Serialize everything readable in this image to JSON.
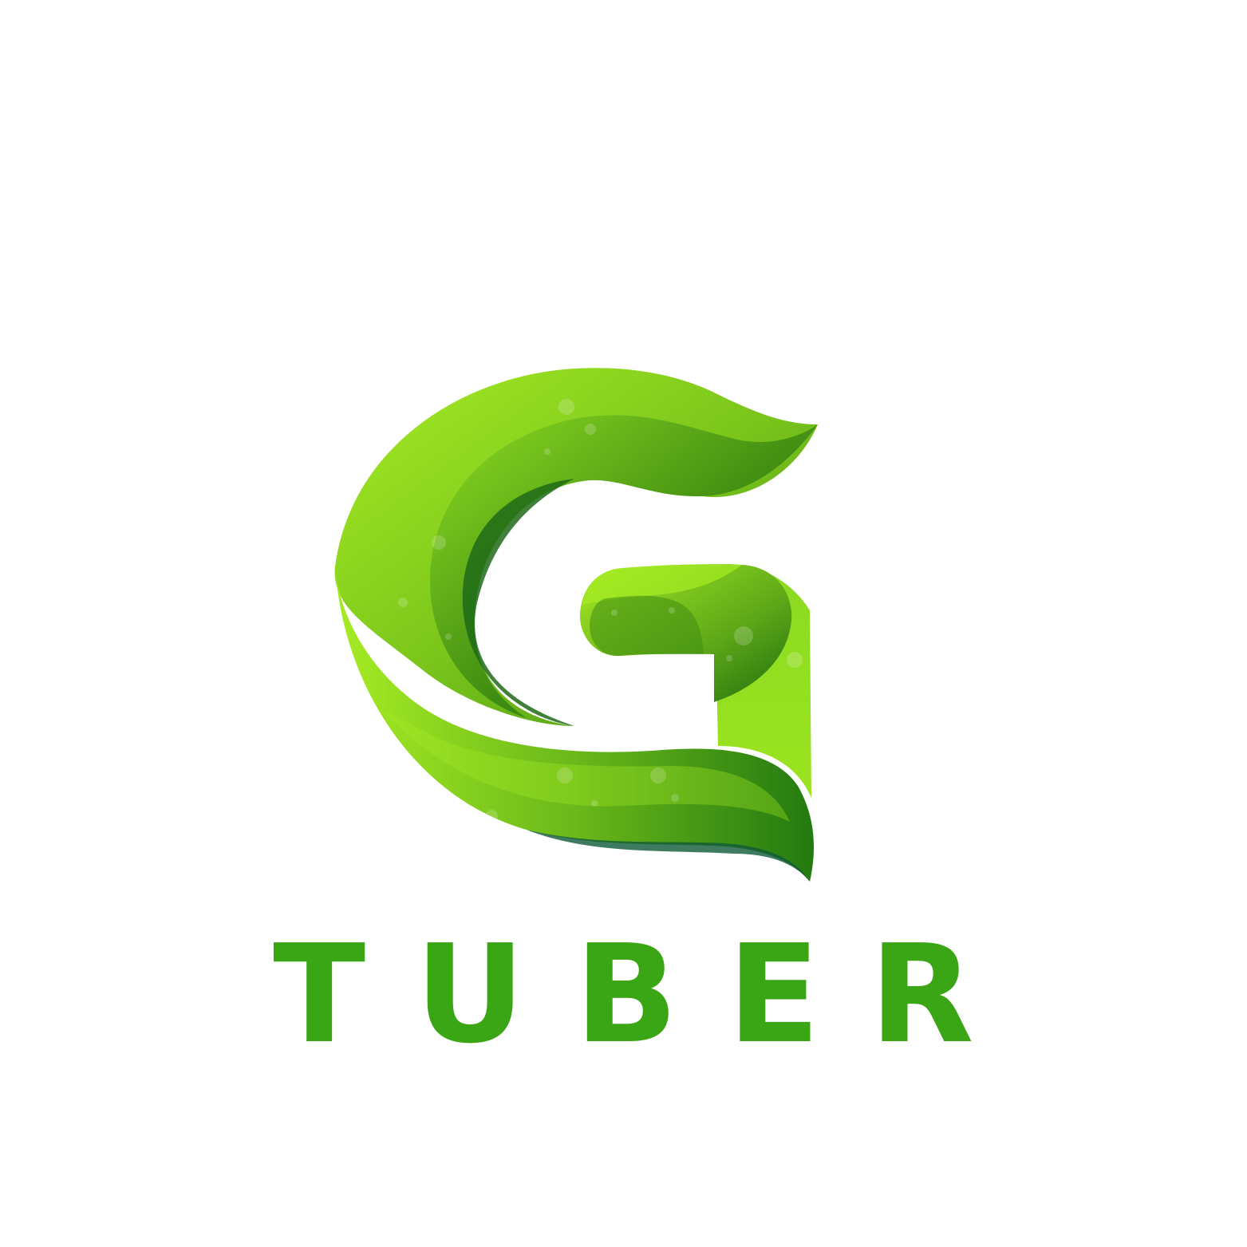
{
  "brand": {
    "name": "TUBER",
    "mark_letter_icon": "leaf-g-logo-icon"
  },
  "colors": {
    "background": "#ffffff",
    "wordmark": "#3aa616",
    "leaf_light": "#a6ec24",
    "leaf_mid": "#5aa619",
    "leaf_dark": "#1f6e0e",
    "leaf_shadow": "#0f5a3a"
  }
}
